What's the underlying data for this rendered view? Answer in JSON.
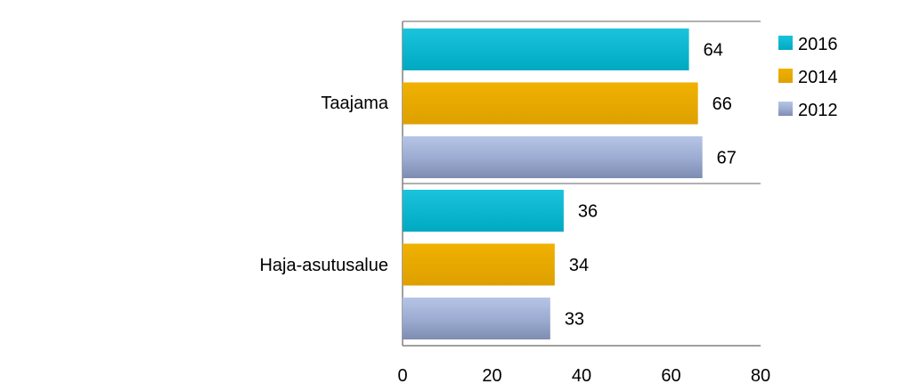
{
  "chart_data": {
    "type": "bar",
    "orientation": "horizontal",
    "categories": [
      "Taajama",
      "Haja-asutusalue"
    ],
    "series": [
      {
        "name": "2016",
        "values": [
          64,
          36
        ],
        "color": "#00B0CC"
      },
      {
        "name": "2014",
        "values": [
          66,
          34
        ],
        "color": "#E8A800"
      },
      {
        "name": "2012",
        "values": [
          67,
          33
        ],
        "color": "#9FAFD4"
      }
    ],
    "xlim": [
      0,
      80
    ],
    "x_ticks": [
      "0",
      "20",
      "40",
      "60",
      "80"
    ],
    "legend_position": "top-right",
    "data_labels": true,
    "grid": false
  }
}
